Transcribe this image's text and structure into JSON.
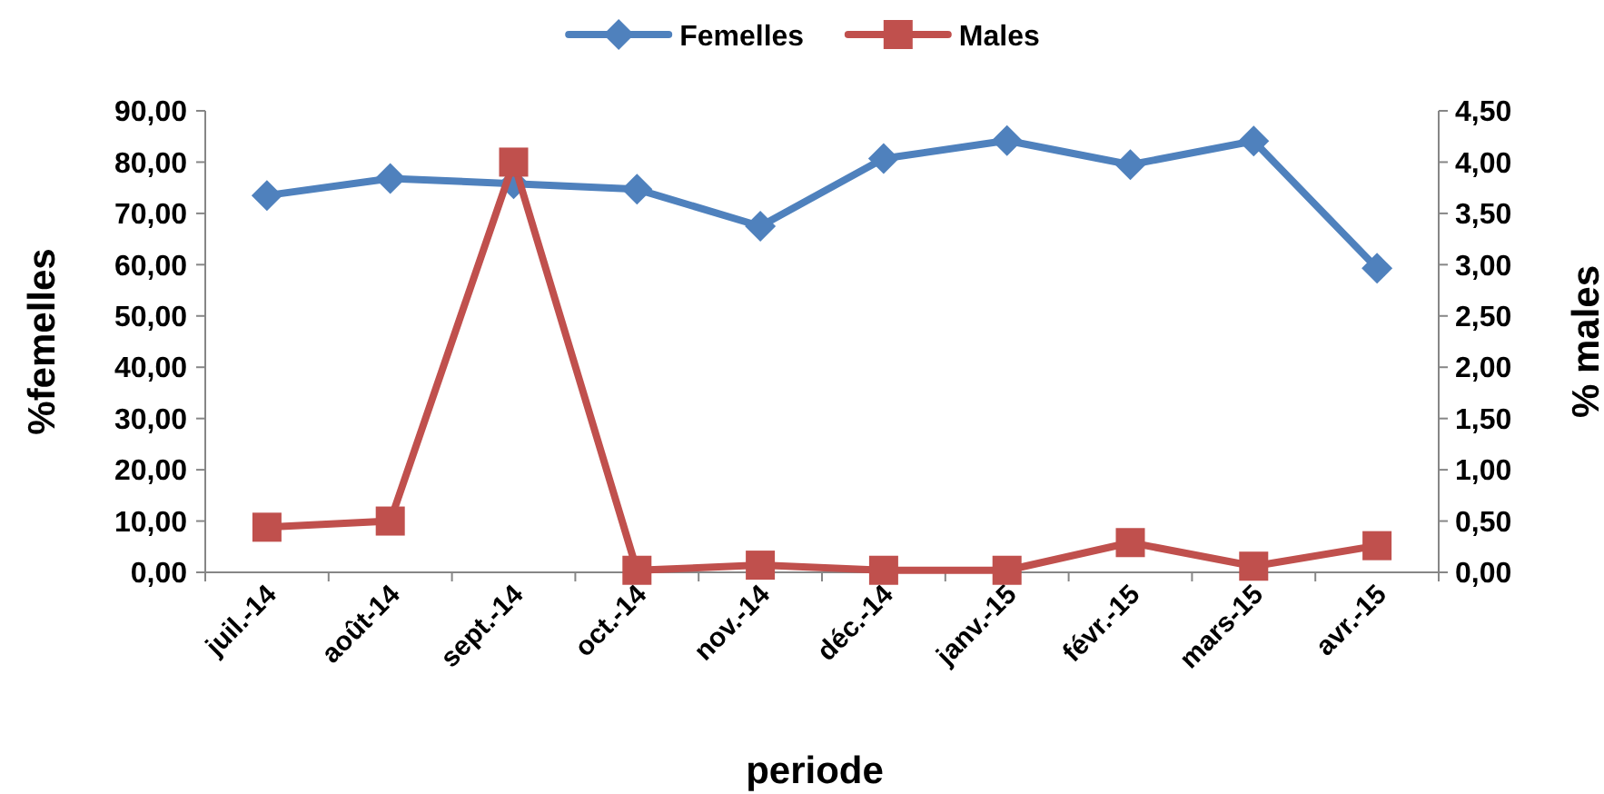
{
  "chart_data": {
    "type": "line",
    "xlabel": "periode",
    "ylabel": "%femelles",
    "y2label": "% males",
    "categories": [
      "juil.-14",
      "août-14",
      "sept.-14",
      "oct.-14",
      "nov.-14",
      "déc.-14",
      "janv.-15",
      "févr.-15",
      "mars-15",
      "avr.-15"
    ],
    "series": [
      {
        "name": "Femelles",
        "color": "#4f81bd",
        "marker": "diamond",
        "values": [
          73.5,
          76.8,
          75.8,
          74.7,
          67.5,
          80.7,
          84.2,
          79.5,
          84.1,
          59.3
        ]
      },
      {
        "name": "Males",
        "color": "#c0504d",
        "marker": "square",
        "axis": "y2",
        "values": [
          0.44,
          0.5,
          4.0,
          0.02,
          0.07,
          0.02,
          0.02,
          0.29,
          0.06,
          0.26
        ]
      }
    ],
    "ylim": [
      0,
      90
    ],
    "yticks": [
      {
        "value": 0,
        "label": "0,00"
      },
      {
        "value": 10,
        "label": "10,00"
      },
      {
        "value": 20,
        "label": "20,00"
      },
      {
        "value": 30,
        "label": "30,00"
      },
      {
        "value": 40,
        "label": "40,00"
      },
      {
        "value": 50,
        "label": "50,00"
      },
      {
        "value": 60,
        "label": "60,00"
      },
      {
        "value": 70,
        "label": "70,00"
      },
      {
        "value": 80,
        "label": "80,00"
      },
      {
        "value": 90,
        "label": "90,00"
      }
    ],
    "y2lim": [
      0,
      4.5
    ],
    "y2ticks": [
      {
        "value": 0,
        "label": "0,00"
      },
      {
        "value": 0.5,
        "label": "0,50"
      },
      {
        "value": 1,
        "label": "1,00"
      },
      {
        "value": 1.5,
        "label": "1,50"
      },
      {
        "value": 2,
        "label": "2,00"
      },
      {
        "value": 2.5,
        "label": "2,50"
      },
      {
        "value": 3,
        "label": "3,00"
      },
      {
        "value": 3.5,
        "label": "3,50"
      },
      {
        "value": 4,
        "label": "4,00"
      },
      {
        "value": 4.5,
        "label": "4,50"
      }
    ],
    "legend": "top",
    "line_style": "solid"
  }
}
